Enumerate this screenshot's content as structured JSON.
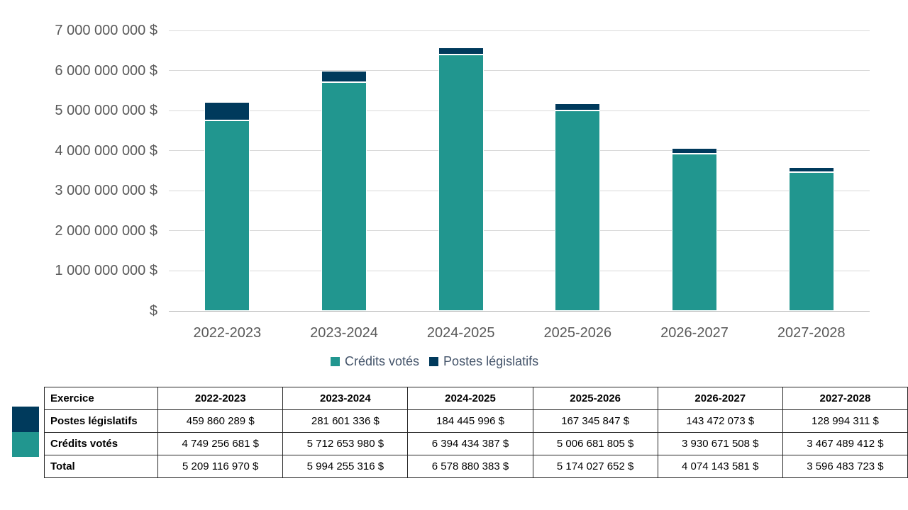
{
  "colors": {
    "credits_votes": "#21968F",
    "postes_legislatifs": "#003A5C",
    "gridline": "#D9D9D9",
    "axis_text": "#595959",
    "legend_text": "#44546A"
  },
  "chart_data": {
    "type": "bar",
    "stacked": true,
    "title": "",
    "xlabel": "",
    "ylabel": "",
    "grid": true,
    "legend_position": "bottom",
    "categories": [
      "2022-2023",
      "2023-2024",
      "2024-2025",
      "2025-2026",
      "2026-2027",
      "2027-2028"
    ],
    "series": [
      {
        "name": "Crédits votés",
        "key": "credits-votes",
        "color": "#21968F",
        "values": [
          4749256681,
          5712653980,
          6394434387,
          5006681805,
          3930671508,
          3467489412
        ]
      },
      {
        "name": "Postes législatifs",
        "key": "postes-legislatifs",
        "color": "#003A5C",
        "values": [
          459860289,
          281601336,
          184445996,
          167345847,
          143472073,
          128994311
        ]
      }
    ],
    "totals": [
      5209116970,
      5994255316,
      6578880383,
      5174027652,
      4074143581,
      3596483723
    ],
    "ylim": [
      0,
      7000000000
    ],
    "y_tick_step": 1000000000,
    "y_tick_labels": [
      "$",
      "1 000 000 000 $",
      "2 000 000 000 $",
      "3 000 000 000 $",
      "4 000 000 000 $",
      "5 000 000 000 $",
      "6 000 000 000 $",
      "7 000 000 000 $"
    ]
  },
  "table": {
    "header": [
      "Exercice",
      "2022-2023",
      "2023-2024",
      "2024-2025",
      "2025-2026",
      "2026-2027",
      "2027-2028"
    ],
    "rows": [
      {
        "label": "Postes législatifs",
        "values": [
          "459 860 289 $",
          "281 601 336 $",
          "184 445 996 $",
          "167 345 847 $",
          "143 472 073 $",
          "128 994 311 $"
        ]
      },
      {
        "label": "Crédits votés",
        "values": [
          "4 749 256 681 $",
          "5 712 653 980 $",
          "6 394 434 387 $",
          "5 006 681 805 $",
          "3 930 671 508 $",
          "3 467 489 412 $"
        ]
      },
      {
        "label": "Total",
        "values": [
          "5 209 116 970 $",
          "5 994 255 316 $",
          "6 578 880 383 $",
          "5 174 027 652 $",
          "4 074 143 581 $",
          "3 596 483 723 $"
        ]
      }
    ]
  }
}
